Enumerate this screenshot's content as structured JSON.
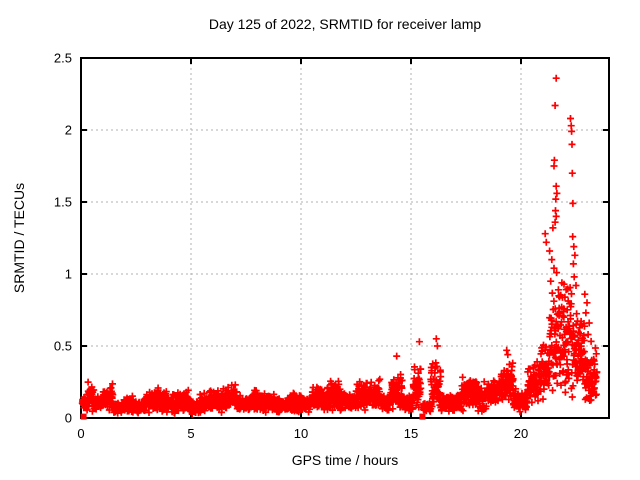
{
  "chart_data": {
    "type": "scatter",
    "title": "Day 125 of 2022, SRMTID for receiver lamp",
    "xlabel": "GPS time / hours",
    "ylabel": "SRMTID / TECUs",
    "xlim": [
      0,
      24
    ],
    "ylim": [
      0,
      2.5
    ],
    "xticks": [
      0,
      5,
      10,
      15,
      20
    ],
    "yticks": [
      0,
      0.5,
      1,
      1.5,
      2,
      2.5
    ],
    "grid": true,
    "legend": "none",
    "marker": "plus",
    "marker_color": "#ff0000",
    "grid_color": "#b0b0b0",
    "border_color": "#000000",
    "background_color": "#ffffff",
    "series_name": "SRMTID",
    "band_segments": [
      [
        0.05,
        0.3,
        0.1,
        0.06
      ],
      [
        0.3,
        0.6,
        0.16,
        0.14
      ],
      [
        0.6,
        1.0,
        0.1,
        0.08
      ],
      [
        1.0,
        1.45,
        0.14,
        0.12
      ],
      [
        1.45,
        1.9,
        0.07,
        0.05
      ],
      [
        1.9,
        2.4,
        0.1,
        0.08
      ],
      [
        2.4,
        2.9,
        0.08,
        0.06
      ],
      [
        2.9,
        3.4,
        0.12,
        0.09
      ],
      [
        3.4,
        3.9,
        0.13,
        0.11
      ],
      [
        3.9,
        4.4,
        0.1,
        0.08
      ],
      [
        4.4,
        4.9,
        0.12,
        0.1
      ],
      [
        4.9,
        5.4,
        0.08,
        0.06
      ],
      [
        5.4,
        6.0,
        0.11,
        0.09
      ],
      [
        6.0,
        6.6,
        0.12,
        0.1
      ],
      [
        6.6,
        7.1,
        0.14,
        0.11
      ],
      [
        7.1,
        7.7,
        0.1,
        0.07
      ],
      [
        7.7,
        8.2,
        0.12,
        0.09
      ],
      [
        8.2,
        8.8,
        0.11,
        0.08
      ],
      [
        8.8,
        9.4,
        0.09,
        0.06
      ],
      [
        9.4,
        10.0,
        0.11,
        0.09
      ],
      [
        10.0,
        10.5,
        0.1,
        0.07
      ],
      [
        10.5,
        11.2,
        0.15,
        0.12
      ],
      [
        11.2,
        12.0,
        0.15,
        0.13
      ],
      [
        12.0,
        12.5,
        0.11,
        0.08
      ],
      [
        12.5,
        13.1,
        0.15,
        0.12
      ],
      [
        13.1,
        13.6,
        0.16,
        0.13
      ],
      [
        13.6,
        14.1,
        0.11,
        0.08
      ],
      [
        14.1,
        14.6,
        0.18,
        0.16
      ],
      [
        14.6,
        15.1,
        0.1,
        0.07
      ],
      [
        15.1,
        15.45,
        0.22,
        0.22
      ],
      [
        15.55,
        15.9,
        0.07,
        0.05
      ],
      [
        15.9,
        16.35,
        0.22,
        0.2
      ],
      [
        16.35,
        17.3,
        0.1,
        0.08
      ],
      [
        17.3,
        18.0,
        0.18,
        0.15
      ],
      [
        18.0,
        18.5,
        0.15,
        0.12
      ],
      [
        18.5,
        19.1,
        0.18,
        0.14
      ],
      [
        19.1,
        19.65,
        0.25,
        0.18
      ],
      [
        19.65,
        20.3,
        0.12,
        0.1
      ],
      [
        20.3,
        20.9,
        0.25,
        0.2
      ],
      [
        20.9,
        21.3,
        0.33,
        0.27
      ],
      [
        21.3,
        22.3,
        0.55,
        0.5
      ],
      [
        22.3,
        22.9,
        0.45,
        0.4
      ],
      [
        22.9,
        23.45,
        0.3,
        0.27
      ]
    ],
    "outlier_points": [
      [
        21.6,
        2.36
      ],
      [
        21.55,
        2.17
      ],
      [
        22.25,
        2.08
      ],
      [
        22.28,
        2.03
      ],
      [
        22.3,
        1.99
      ],
      [
        22.32,
        1.9
      ],
      [
        21.52,
        1.79
      ],
      [
        21.5,
        1.75
      ],
      [
        22.33,
        1.7
      ],
      [
        21.6,
        1.61
      ],
      [
        21.63,
        1.56
      ],
      [
        21.58,
        1.52
      ],
      [
        22.36,
        1.49
      ],
      [
        21.57,
        1.44
      ],
      [
        21.6,
        1.4
      ],
      [
        21.55,
        1.36
      ],
      [
        21.45,
        1.32
      ],
      [
        21.1,
        1.28
      ],
      [
        22.35,
        1.26
      ],
      [
        21.15,
        1.22
      ],
      [
        22.4,
        1.19
      ],
      [
        21.3,
        1.16
      ],
      [
        22.45,
        1.13
      ],
      [
        21.4,
        1.1
      ],
      [
        22.38,
        1.07
      ],
      [
        21.5,
        1.04
      ],
      [
        21.62,
        1.01
      ],
      [
        22.42,
        0.98
      ],
      [
        21.35,
        0.95
      ],
      [
        22.5,
        0.92
      ],
      [
        21.7,
        0.89
      ],
      [
        22.9,
        0.86
      ],
      [
        21.75,
        0.84
      ],
      [
        23.0,
        0.8
      ],
      [
        21.85,
        0.77
      ],
      [
        22.95,
        0.73
      ],
      [
        21.95,
        0.7
      ],
      [
        23.1,
        0.66
      ],
      [
        22.05,
        0.63
      ],
      [
        23.05,
        0.58
      ],
      [
        16.15,
        0.55
      ],
      [
        15.38,
        0.53
      ],
      [
        16.2,
        0.5
      ],
      [
        19.35,
        0.47
      ],
      [
        19.4,
        0.44
      ],
      [
        14.35,
        0.43
      ]
    ],
    "square_points": [
      [
        0.12,
        0.01
      ],
      [
        15.52,
        0.01
      ]
    ],
    "render": {
      "seed": 125,
      "points_per_hour": 120,
      "marker_size": 7,
      "marker_stroke": 1.7,
      "square_size": 6,
      "tick_length": 6
    }
  }
}
